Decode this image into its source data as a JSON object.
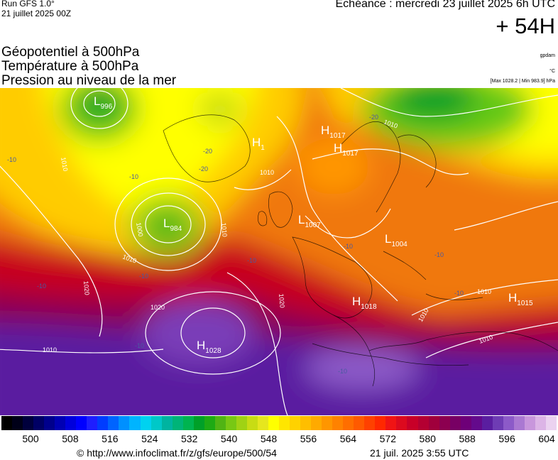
{
  "header": {
    "run_line1": "Run GFS 1.0°",
    "run_line2": "21 juillet 2025 00Z",
    "echeance": "Echéance : mercredi 23 juillet 2025 6h UTC",
    "lead_time": "+ 54H"
  },
  "titles": {
    "line1": "Géopotentiel à 500hPa",
    "line2": "Température à 500hPa",
    "line3": "Pression au niveau de la mer"
  },
  "units": {
    "geopotential": "gpdam",
    "temperature": "°C",
    "pressure_range": "[Max 1028.2 | Min 983.9] hPa"
  },
  "pressure_centers": [
    {
      "type": "L",
      "value": "996"
    },
    {
      "type": "H",
      "value": "1017"
    },
    {
      "type": "H",
      "value": "1017"
    },
    {
      "type": "H",
      "value": "1"
    },
    {
      "type": "L",
      "value": "984"
    },
    {
      "type": "L",
      "value": "1007"
    },
    {
      "type": "L",
      "value": "1004"
    },
    {
      "type": "H",
      "value": "1018"
    },
    {
      "type": "H",
      "value": "1015"
    },
    {
      "type": "H",
      "value": "1028"
    }
  ],
  "isobar_labels": [
    "1010",
    "1010",
    "1000",
    "1010",
    "1020",
    "1010",
    "1010",
    "1020",
    "1020",
    "1010",
    "1010",
    "1010",
    "1010"
  ],
  "temperature_labels": [
    "-10",
    "-10",
    "-10",
    "-10",
    "-20",
    "-20",
    "-10",
    "-10",
    "-10",
    "-10",
    "-10",
    "-10",
    "-20"
  ],
  "colorbar": {
    "labels": [
      "500",
      "508",
      "516",
      "524",
      "532",
      "540",
      "548",
      "556",
      "564",
      "572",
      "580",
      "588",
      "596",
      "604"
    ],
    "colors": [
      "#000000",
      "#000018",
      "#00003c",
      "#000064",
      "#00008c",
      "#0000b4",
      "#0000dc",
      "#0000ff",
      "#1e1eff",
      "#003cff",
      "#0064ff",
      "#0090ff",
      "#00b4ff",
      "#00d2f0",
      "#00c8c8",
      "#00b4a0",
      "#00b478",
      "#00b450",
      "#00a028",
      "#1eaa14",
      "#50b414",
      "#78c814",
      "#a0d214",
      "#c8dc14",
      "#e6e61e",
      "#ffff00",
      "#ffe600",
      "#ffd200",
      "#ffbe00",
      "#ffaa00",
      "#ff9600",
      "#ff8200",
      "#ff6e00",
      "#ff5a00",
      "#ff4100",
      "#ff2800",
      "#f01414",
      "#dc0a1e",
      "#c80028",
      "#b40032",
      "#a0003c",
      "#8c0050",
      "#780064",
      "#6e0078",
      "#640a8c",
      "#5a1ea0",
      "#6e3cb4",
      "#8c5ac8",
      "#aa78d2",
      "#c896dc",
      "#dcb4e6",
      "#ebd2f0"
    ]
  },
  "footer": {
    "url": "© http://www.infoclimat.fr/z/gfs/europe/500/54",
    "date": "21 juil. 2025  3:55 UTC"
  }
}
